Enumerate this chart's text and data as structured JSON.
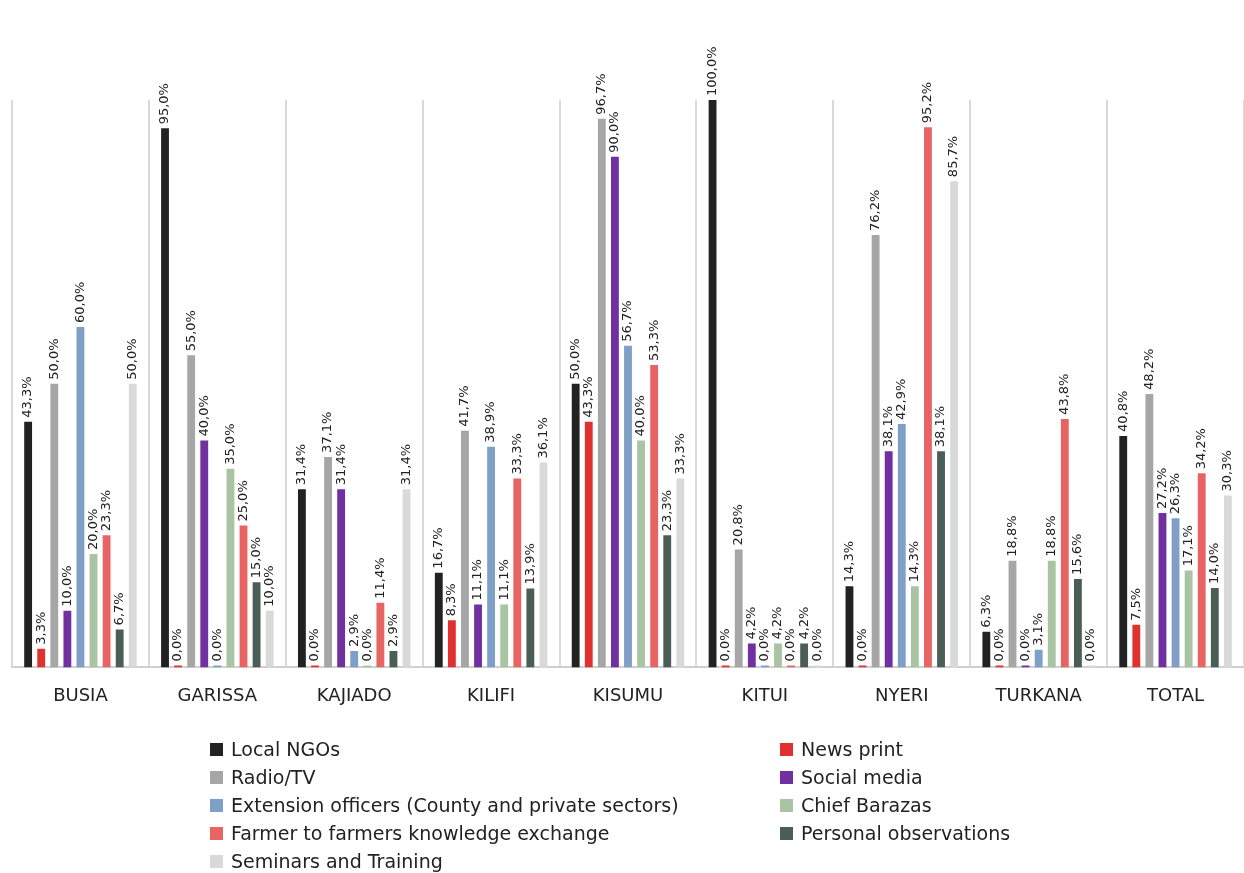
{
  "chart_data": {
    "type": "bar",
    "categories": [
      "BUSIA",
      "GARISSA",
      "KAJIADO",
      "KILIFI",
      "KISUMU",
      "KITUI",
      "NYERI",
      "TURKANA",
      "TOTAL"
    ],
    "series": [
      {
        "name": "Local NGOs",
        "color": "#222222",
        "values": [
          43.3,
          95.0,
          31.4,
          16.7,
          50.0,
          100.0,
          14.3,
          6.3,
          40.8
        ],
        "value_labels": [
          "43,3%",
          "95,0%",
          "31,4%",
          "16,7%",
          "50,0%",
          "100,0%",
          "14,3%",
          "6,3%",
          "40,8%"
        ]
      },
      {
        "name": "News print",
        "color": "#e03131",
        "values": [
          3.3,
          0.0,
          0.0,
          8.3,
          43.3,
          0.0,
          0.0,
          0.0,
          7.5
        ],
        "value_labels": [
          "3,3%",
          "0,0%",
          "0,0%",
          "8,3%",
          "43,3%",
          "0,0%",
          "0,0%",
          "0,0%",
          "7,5%"
        ]
      },
      {
        "name": "Radio/TV",
        "color": "#a6a6a6",
        "values": [
          50.0,
          55.0,
          37.1,
          41.7,
          96.7,
          20.8,
          76.2,
          18.8,
          48.2
        ],
        "value_labels": [
          "50,0%",
          "55,0%",
          "37,1%",
          "41,7%",
          "96,7%",
          "20,8%",
          "76,2%",
          "18,8%",
          "48,2%"
        ]
      },
      {
        "name": "Social media",
        "color": "#7030a0",
        "values": [
          10.0,
          40.0,
          31.4,
          11.1,
          90.0,
          4.2,
          38.1,
          0.0,
          27.2
        ],
        "value_labels": [
          "10,0%",
          "40,0%",
          "31,4%",
          "11,1%",
          "90,0%",
          "4,2%",
          "38,1%",
          "0,0%",
          "27,2%"
        ]
      },
      {
        "name": "Extension officers (County and private sectors)",
        "color": "#7f9fc6",
        "values": [
          60.0,
          0.0,
          2.9,
          38.9,
          56.7,
          0.0,
          42.9,
          3.1,
          26.3
        ],
        "value_labels": [
          "60,0%",
          "0,0%",
          "2,9%",
          "38,9%",
          "56,7%",
          "0,0%",
          "42,9%",
          "3,1%",
          "26,3%"
        ]
      },
      {
        "name": "Chief Barazas",
        "color": "#a9c4a3",
        "values": [
          20.0,
          35.0,
          0.0,
          11.1,
          40.0,
          4.2,
          14.3,
          18.8,
          17.1
        ],
        "value_labels": [
          "20,0%",
          "35,0%",
          "0,0%",
          "11,1%",
          "40,0%",
          "4,2%",
          "14,3%",
          "18,8%",
          "17,1%"
        ]
      },
      {
        "name": "Farmer to farmers knowledge exchange",
        "color": "#e86464",
        "values": [
          23.3,
          25.0,
          11.4,
          33.3,
          53.3,
          0.0,
          95.2,
          43.8,
          34.2
        ],
        "value_labels": [
          "23,3%",
          "25,0%",
          "11,4%",
          "33,3%",
          "53,3%",
          "0,0%",
          "95,2%",
          "43,8%",
          "34,2%"
        ]
      },
      {
        "name": "Personal observations",
        "color": "#4a5e55",
        "values": [
          6.7,
          15.0,
          2.9,
          13.9,
          23.3,
          4.2,
          38.1,
          15.6,
          14.0
        ],
        "value_labels": [
          "6,7%",
          "15,0%",
          "2,9%",
          "13,9%",
          "23,3%",
          "4,2%",
          "38,1%",
          "15,6%",
          "14,0%"
        ]
      },
      {
        "name": "Seminars and Training",
        "color": "#d9d9d9",
        "values": [
          50.0,
          10.0,
          31.4,
          36.1,
          33.3,
          0.0,
          85.7,
          0.0,
          30.3
        ],
        "value_labels": [
          "50,0%",
          "10,0%",
          "31,4%",
          "36,1%",
          "33,3%",
          "0,0%",
          "85,7%",
          "0,0%",
          "30,3%"
        ]
      }
    ],
    "grid": "x",
    "legend": "bottom"
  }
}
